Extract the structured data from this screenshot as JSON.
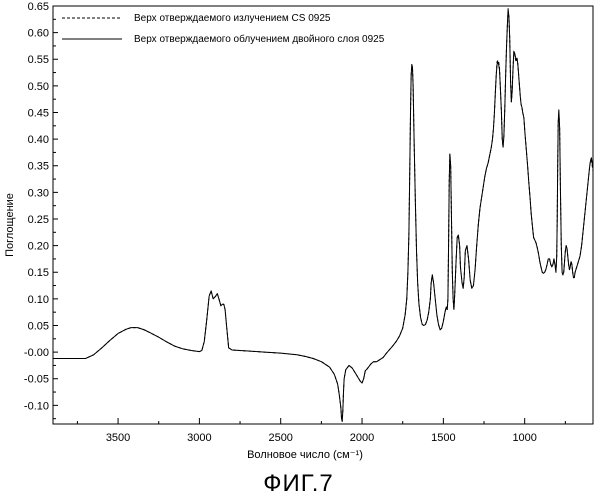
{
  "figure_caption": "ФИГ.7",
  "chart_data": {
    "type": "line",
    "xlabel": "Волновое число (см⁻¹)",
    "ylabel": "Поглощение",
    "xlim": [
      3900,
      580
    ],
    "x_reversed": true,
    "ylim": [
      -0.135,
      0.65
    ],
    "x_ticks": [
      "3500",
      "3000",
      "2500",
      "2000",
      "1500",
      "1000"
    ],
    "y_ticks": [
      "0.65",
      "0.60",
      "0.55",
      "0.50",
      "0.45",
      "0.40",
      "0.35",
      "0.30",
      "0.25",
      "0.20",
      "0.15",
      "0.10",
      "0.05",
      "-0.00",
      "-0.05",
      "-0.10"
    ],
    "grid": false,
    "legend_position": "top-left",
    "series": [
      {
        "name": "Верх отверждаемого излучением CS 0925",
        "line_style": "dashed",
        "color": "#000000",
        "x": [
          3900,
          3700,
          3650,
          3600,
          3550,
          3500,
          3450,
          3420,
          3380,
          3340,
          3300,
          3250,
          3200,
          3150,
          3100,
          3050,
          3000,
          2985,
          2970,
          2955,
          2940,
          2928,
          2915,
          2900,
          2890,
          2878,
          2868,
          2858,
          2850,
          2842,
          2830,
          2820,
          2800,
          2700,
          2600,
          2500,
          2400,
          2350,
          2300,
          2250,
          2200,
          2170,
          2150,
          2140,
          2130,
          2126,
          2122,
          2118,
          2114,
          2110,
          2100,
          2080,
          2060,
          2040,
          2020,
          2010,
          2000,
          1990,
          1980,
          1970,
          1960,
          1945,
          1930,
          1910,
          1890,
          1870,
          1850,
          1830,
          1810,
          1790,
          1770,
          1750,
          1735,
          1725,
          1718,
          1712,
          1707,
          1702,
          1698,
          1694,
          1690,
          1686,
          1680,
          1672,
          1665,
          1658,
          1650,
          1640,
          1630,
          1620,
          1610,
          1600,
          1590,
          1580,
          1575,
          1568,
          1560,
          1550,
          1540,
          1530,
          1520,
          1510,
          1500,
          1490,
          1482,
          1476,
          1472,
          1468,
          1464,
          1460,
          1455,
          1450,
          1445,
          1440,
          1435,
          1430,
          1422,
          1415,
          1408,
          1400,
          1395,
          1385,
          1378,
          1372,
          1365,
          1355,
          1345,
          1335,
          1325,
          1315,
          1305,
          1295,
          1285,
          1275,
          1265,
          1255,
          1245,
          1235,
          1225,
          1215,
          1205,
          1198,
          1192,
          1186,
          1180,
          1175,
          1170,
          1165,
          1160,
          1155,
          1150,
          1143,
          1138,
          1133,
          1128,
          1122,
          1117,
          1112,
          1107,
          1102,
          1097,
          1092,
          1087,
          1082,
          1077,
          1072,
          1067,
          1062,
          1057,
          1052,
          1047,
          1042,
          1037,
          1032,
          1027,
          1022,
          1017,
          1012,
          1005,
          998,
          990,
          982,
          975,
          967,
          960,
          952,
          945,
          937,
          930,
          922,
          915,
          907,
          900,
          892,
          885,
          877,
          870,
          862,
          855,
          847,
          840,
          833,
          826,
          820,
          814,
          808,
          803,
          800,
          797,
          794,
          790,
          785,
          780,
          775,
          770,
          765,
          760,
          755,
          750,
          745,
          740,
          735,
          730,
          725,
          720,
          715,
          710,
          705,
          700,
          695,
          690,
          685,
          680,
          675,
          670,
          665,
          660,
          655,
          650,
          645,
          640,
          635,
          630,
          625,
          620,
          615,
          610,
          605,
          600,
          595,
          590,
          585,
          580
        ],
        "y": [
          -0.012,
          -0.012,
          -0.005,
          0.008,
          0.022,
          0.035,
          0.043,
          0.046,
          0.046,
          0.042,
          0.036,
          0.028,
          0.019,
          0.011,
          0.006,
          0.003,
          0.001,
          0.003,
          0.02,
          0.06,
          0.105,
          0.115,
          0.1,
          0.105,
          0.11,
          0.098,
          0.087,
          0.09,
          0.09,
          0.08,
          0.04,
          0.008,
          0.004,
          0.002,
          0.0,
          -0.002,
          -0.005,
          -0.008,
          -0.012,
          -0.018,
          -0.028,
          -0.042,
          -0.06,
          -0.08,
          -0.105,
          -0.125,
          -0.13,
          -0.11,
          -0.075,
          -0.05,
          -0.033,
          -0.025,
          -0.03,
          -0.04,
          -0.05,
          -0.055,
          -0.058,
          -0.05,
          -0.035,
          -0.032,
          -0.028,
          -0.022,
          -0.018,
          -0.018,
          -0.014,
          -0.01,
          -0.002,
          0.005,
          0.012,
          0.02,
          0.03,
          0.045,
          0.07,
          0.1,
          0.15,
          0.22,
          0.33,
          0.45,
          0.52,
          0.54,
          0.535,
          0.5,
          0.4,
          0.28,
          0.19,
          0.13,
          0.09,
          0.065,
          0.052,
          0.05,
          0.052,
          0.06,
          0.075,
          0.1,
          0.13,
          0.145,
          0.13,
          0.1,
          0.07,
          0.052,
          0.042,
          0.045,
          0.058,
          0.075,
          0.085,
          0.08,
          0.1,
          0.2,
          0.32,
          0.372,
          0.35,
          0.25,
          0.15,
          0.1,
          0.08,
          0.11,
          0.17,
          0.215,
          0.22,
          0.2,
          0.16,
          0.13,
          0.12,
          0.14,
          0.19,
          0.2,
          0.175,
          0.135,
          0.12,
          0.125,
          0.155,
          0.2,
          0.24,
          0.27,
          0.29,
          0.31,
          0.33,
          0.345,
          0.355,
          0.37,
          0.385,
          0.4,
          0.42,
          0.45,
          0.49,
          0.52,
          0.545,
          0.548,
          0.545,
          0.535,
          0.5,
          0.45,
          0.4,
          0.385,
          0.405,
          0.46,
          0.52,
          0.57,
          0.61,
          0.64,
          0.63,
          0.59,
          0.51,
          0.47,
          0.49,
          0.53,
          0.56,
          0.56,
          0.55,
          0.545,
          0.55,
          0.54,
          0.52,
          0.5,
          0.48,
          0.465,
          0.46,
          0.45,
          0.44,
          0.41,
          0.38,
          0.35,
          0.32,
          0.29,
          0.26,
          0.235,
          0.215,
          0.21,
          0.205,
          0.195,
          0.185,
          0.17,
          0.16,
          0.15,
          0.148,
          0.15,
          0.155,
          0.165,
          0.175,
          0.175,
          0.165,
          0.16,
          0.165,
          0.175,
          0.165,
          0.15,
          0.18,
          0.25,
          0.35,
          0.43,
          0.45,
          0.42,
          0.3,
          0.2,
          0.15,
          0.145,
          0.15,
          0.17,
          0.19,
          0.2,
          0.195,
          0.18,
          0.165,
          0.155,
          0.16,
          0.17,
          0.165,
          0.15,
          0.14,
          0.14,
          0.15,
          0.155,
          0.16,
          0.165,
          0.17,
          0.175,
          0.18,
          0.19,
          0.2,
          0.215,
          0.23,
          0.245,
          0.26,
          0.275,
          0.29,
          0.305,
          0.32,
          0.335,
          0.35,
          0.36,
          0.36,
          0.35,
          0.34
        ]
      },
      {
        "name": "Верх отверждаемого облучением двойного слоя 0925",
        "line_style": "solid",
        "color": "#000000",
        "x": [
          3900,
          3700,
          3650,
          3600,
          3550,
          3500,
          3450,
          3420,
          3380,
          3340,
          3300,
          3250,
          3200,
          3150,
          3100,
          3050,
          3000,
          2985,
          2970,
          2955,
          2940,
          2928,
          2915,
          2900,
          2890,
          2878,
          2868,
          2858,
          2850,
          2842,
          2830,
          2820,
          2800,
          2700,
          2600,
          2500,
          2400,
          2350,
          2300,
          2250,
          2200,
          2170,
          2150,
          2140,
          2130,
          2126,
          2122,
          2118,
          2114,
          2110,
          2100,
          2080,
          2060,
          2040,
          2020,
          2010,
          2000,
          1990,
          1980,
          1970,
          1960,
          1945,
          1930,
          1910,
          1890,
          1870,
          1850,
          1830,
          1810,
          1790,
          1770,
          1750,
          1735,
          1725,
          1718,
          1712,
          1707,
          1702,
          1698,
          1694,
          1690,
          1686,
          1680,
          1672,
          1665,
          1658,
          1650,
          1640,
          1630,
          1620,
          1610,
          1600,
          1590,
          1580,
          1575,
          1568,
          1560,
          1550,
          1540,
          1530,
          1520,
          1510,
          1500,
          1490,
          1482,
          1476,
          1472,
          1468,
          1464,
          1460,
          1455,
          1450,
          1445,
          1440,
          1435,
          1430,
          1422,
          1415,
          1408,
          1400,
          1395,
          1385,
          1378,
          1372,
          1365,
          1355,
          1345,
          1335,
          1325,
          1315,
          1305,
          1295,
          1285,
          1275,
          1265,
          1255,
          1245,
          1235,
          1225,
          1215,
          1205,
          1198,
          1192,
          1186,
          1180,
          1175,
          1170,
          1165,
          1160,
          1155,
          1150,
          1143,
          1138,
          1133,
          1128,
          1122,
          1117,
          1112,
          1107,
          1102,
          1097,
          1092,
          1087,
          1082,
          1077,
          1072,
          1067,
          1062,
          1057,
          1052,
          1047,
          1042,
          1037,
          1032,
          1027,
          1022,
          1017,
          1012,
          1005,
          998,
          990,
          982,
          975,
          967,
          960,
          952,
          945,
          937,
          930,
          922,
          915,
          907,
          900,
          892,
          885,
          877,
          870,
          862,
          855,
          847,
          840,
          833,
          826,
          820,
          814,
          808,
          803,
          800,
          797,
          794,
          790,
          785,
          780,
          775,
          770,
          765,
          760,
          755,
          750,
          745,
          740,
          735,
          730,
          725,
          720,
          715,
          710,
          705,
          700,
          695,
          690,
          685,
          680,
          675,
          670,
          665,
          660,
          655,
          650,
          645,
          640,
          635,
          630,
          625,
          620,
          615,
          610,
          605,
          600,
          595,
          590,
          585,
          580
        ],
        "y": [
          -0.012,
          -0.012,
          -0.005,
          0.008,
          0.022,
          0.035,
          0.043,
          0.046,
          0.046,
          0.042,
          0.036,
          0.028,
          0.019,
          0.011,
          0.006,
          0.003,
          0.001,
          0.003,
          0.02,
          0.06,
          0.105,
          0.115,
          0.1,
          0.105,
          0.11,
          0.098,
          0.087,
          0.09,
          0.09,
          0.08,
          0.04,
          0.008,
          0.004,
          0.002,
          0.0,
          -0.002,
          -0.005,
          -0.008,
          -0.012,
          -0.018,
          -0.028,
          -0.042,
          -0.06,
          -0.08,
          -0.105,
          -0.125,
          -0.13,
          -0.11,
          -0.075,
          -0.05,
          -0.033,
          -0.025,
          -0.03,
          -0.04,
          -0.05,
          -0.055,
          -0.058,
          -0.05,
          -0.035,
          -0.032,
          -0.028,
          -0.022,
          -0.018,
          -0.018,
          -0.014,
          -0.01,
          -0.002,
          0.005,
          0.012,
          0.02,
          0.03,
          0.045,
          0.07,
          0.1,
          0.15,
          0.22,
          0.33,
          0.45,
          0.52,
          0.54,
          0.535,
          0.5,
          0.4,
          0.28,
          0.19,
          0.13,
          0.09,
          0.065,
          0.052,
          0.05,
          0.052,
          0.06,
          0.075,
          0.1,
          0.13,
          0.145,
          0.13,
          0.1,
          0.07,
          0.052,
          0.042,
          0.045,
          0.058,
          0.075,
          0.085,
          0.08,
          0.1,
          0.2,
          0.32,
          0.372,
          0.35,
          0.25,
          0.15,
          0.1,
          0.08,
          0.11,
          0.17,
          0.215,
          0.22,
          0.2,
          0.16,
          0.13,
          0.12,
          0.14,
          0.19,
          0.2,
          0.175,
          0.135,
          0.12,
          0.125,
          0.155,
          0.2,
          0.24,
          0.27,
          0.29,
          0.31,
          0.33,
          0.345,
          0.355,
          0.37,
          0.385,
          0.4,
          0.42,
          0.45,
          0.49,
          0.52,
          0.54,
          0.545,
          0.54,
          0.53,
          0.5,
          0.45,
          0.4,
          0.385,
          0.405,
          0.46,
          0.52,
          0.57,
          0.61,
          0.645,
          0.63,
          0.59,
          0.51,
          0.47,
          0.49,
          0.53,
          0.565,
          0.562,
          0.555,
          0.548,
          0.552,
          0.54,
          0.52,
          0.5,
          0.48,
          0.465,
          0.46,
          0.45,
          0.44,
          0.41,
          0.38,
          0.35,
          0.32,
          0.29,
          0.26,
          0.235,
          0.215,
          0.21,
          0.205,
          0.195,
          0.185,
          0.17,
          0.16,
          0.15,
          0.148,
          0.15,
          0.155,
          0.165,
          0.175,
          0.175,
          0.165,
          0.16,
          0.165,
          0.175,
          0.165,
          0.15,
          0.18,
          0.25,
          0.35,
          0.43,
          0.455,
          0.42,
          0.3,
          0.2,
          0.15,
          0.145,
          0.15,
          0.17,
          0.19,
          0.2,
          0.195,
          0.18,
          0.165,
          0.155,
          0.16,
          0.17,
          0.165,
          0.15,
          0.14,
          0.14,
          0.15,
          0.155,
          0.16,
          0.165,
          0.17,
          0.175,
          0.18,
          0.19,
          0.2,
          0.215,
          0.23,
          0.245,
          0.26,
          0.275,
          0.29,
          0.305,
          0.32,
          0.335,
          0.35,
          0.36,
          0.365,
          0.355,
          0.345
        ]
      }
    ]
  }
}
